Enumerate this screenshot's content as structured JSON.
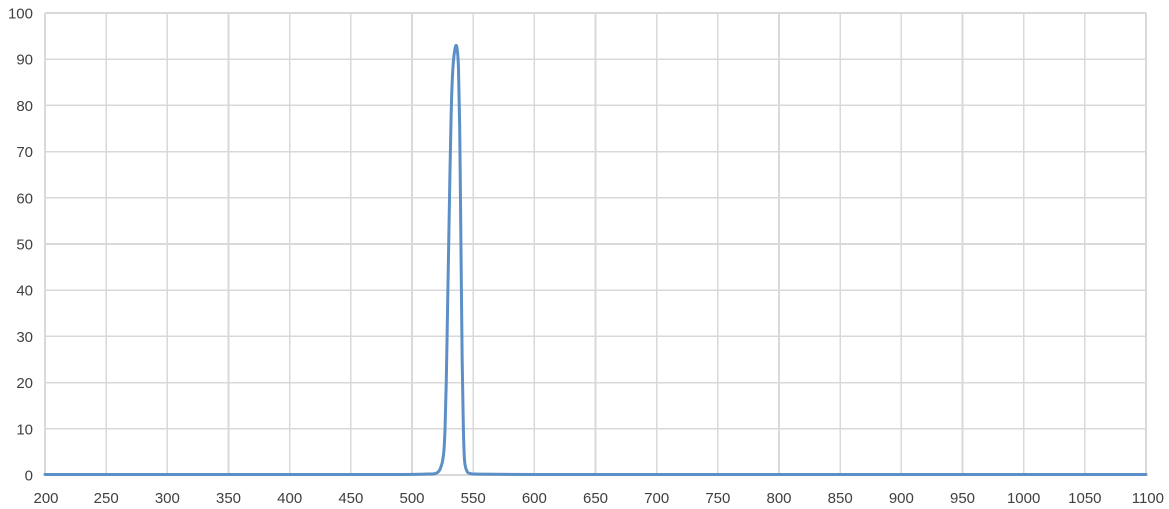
{
  "chart_data": {
    "type": "line",
    "title": "",
    "xlabel": "",
    "ylabel": "",
    "xlim": [
      200,
      1100
    ],
    "ylim": [
      0,
      100
    ],
    "x_ticks": [
      200,
      250,
      300,
      350,
      400,
      450,
      500,
      550,
      600,
      650,
      700,
      750,
      800,
      850,
      900,
      950,
      1000,
      1050,
      1100
    ],
    "y_ticks": [
      0,
      10,
      20,
      30,
      40,
      50,
      60,
      70,
      80,
      90,
      100
    ],
    "grid": true,
    "legend": "none",
    "colors": {
      "line": "#5b8fc6",
      "grid": "#d9d9d9",
      "text": "#404040"
    },
    "series": [
      {
        "x": [
          200,
          300,
          400,
          480,
          510,
          520,
          524,
          526,
          527,
          528,
          529,
          530,
          531,
          532,
          533,
          534,
          535,
          536,
          537,
          538,
          539,
          540,
          541,
          542,
          543,
          545,
          548,
          555,
          600,
          700,
          800,
          900,
          1000,
          1100
        ],
        "values": [
          0.1,
          0.1,
          0.1,
          0.1,
          0.2,
          0.4,
          2,
          5,
          10,
          20,
          35,
          50,
          65,
          78,
          86,
          90,
          92,
          93,
          92,
          88,
          75,
          50,
          25,
          10,
          3,
          0.8,
          0.3,
          0.2,
          0.1,
          0.1,
          0.1,
          0.1,
          0.1,
          0.1
        ]
      }
    ]
  }
}
